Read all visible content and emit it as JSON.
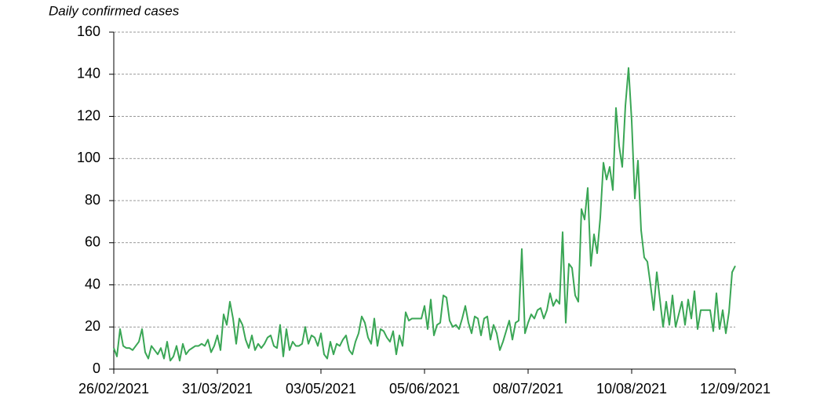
{
  "chart_data": {
    "type": "line",
    "title": "Daily confirmed cases",
    "categories": [
      "26/02/2021",
      null,
      null,
      null,
      null,
      null,
      null,
      null,
      null,
      null,
      null,
      null,
      null,
      null,
      null,
      null,
      null,
      null,
      null,
      null,
      null,
      null,
      null,
      null,
      null,
      null,
      null,
      null,
      null,
      null,
      null,
      null,
      null,
      "31/03/2021",
      null,
      null,
      null,
      null,
      null,
      null,
      null,
      null,
      null,
      null,
      null,
      null,
      null,
      null,
      null,
      null,
      null,
      null,
      null,
      null,
      null,
      null,
      null,
      null,
      null,
      null,
      null,
      null,
      null,
      null,
      null,
      null,
      "03/05/2021",
      null,
      null,
      null,
      null,
      null,
      null,
      null,
      null,
      null,
      null,
      null,
      null,
      null,
      null,
      null,
      null,
      null,
      null,
      null,
      null,
      null,
      null,
      null,
      null,
      null,
      null,
      null,
      null,
      null,
      null,
      null,
      null,
      "05/06/2021",
      null,
      null,
      null,
      null,
      null,
      null,
      null,
      null,
      null,
      null,
      null,
      null,
      null,
      null,
      null,
      null,
      null,
      null,
      null,
      null,
      null,
      null,
      null,
      null,
      null,
      null,
      null,
      null,
      null,
      null,
      null,
      null,
      "08/07/2021",
      null,
      null,
      null,
      null,
      null,
      null,
      null,
      null,
      null,
      null,
      null,
      null,
      null,
      null,
      null,
      null,
      null,
      null,
      null,
      null,
      null,
      null,
      null,
      null,
      null,
      null,
      null,
      null,
      null,
      null,
      null,
      null,
      "10/08/2021",
      null,
      null,
      null,
      null,
      null,
      null,
      null,
      null,
      null,
      null,
      null,
      null,
      null,
      null,
      null,
      null,
      null,
      null,
      null,
      null,
      null,
      null,
      null,
      null,
      null,
      null,
      null,
      null,
      null,
      null,
      null,
      null,
      "12/09/2021"
    ],
    "values": [
      10,
      6,
      19,
      11,
      10,
      10,
      9,
      11,
      13,
      19,
      8,
      5,
      11,
      9,
      7,
      10,
      5,
      13,
      4,
      6,
      11,
      4,
      12,
      7,
      9,
      10,
      11,
      11,
      12,
      11,
      14,
      8,
      11,
      16,
      9,
      26,
      21,
      32,
      24,
      12,
      24,
      21,
      14,
      10,
      16,
      9,
      12,
      10,
      12,
      15,
      16,
      11,
      10,
      21,
      6,
      19,
      9,
      13,
      11,
      11,
      12,
      20,
      12,
      16,
      15,
      11,
      17,
      7,
      5,
      13,
      7,
      12,
      11,
      14,
      16,
      9,
      7,
      13,
      17,
      25,
      22,
      15,
      12,
      24,
      11,
      19,
      18,
      15,
      13,
      18,
      7,
      16,
      11,
      27,
      23,
      24,
      24,
      24,
      24,
      30,
      19,
      33,
      16,
      21,
      22,
      35,
      34,
      23,
      20,
      21,
      19,
      24,
      30,
      22,
      17,
      25,
      24,
      16,
      24,
      25,
      14,
      21,
      17,
      9,
      13,
      18,
      23,
      14,
      22,
      23,
      57,
      17,
      22,
      26,
      24,
      28,
      29,
      24,
      28,
      36,
      30,
      33,
      31,
      65,
      22,
      50,
      48,
      35,
      32,
      76,
      71,
      86,
      49,
      64,
      55,
      72,
      98,
      90,
      96,
      85,
      124,
      106,
      96,
      125,
      143,
      118,
      81,
      99,
      66,
      53,
      51,
      40,
      28,
      46,
      33,
      20,
      32,
      21,
      35,
      20,
      26,
      32,
      21,
      33,
      24,
      37,
      19,
      28,
      28,
      28,
      28,
      18,
      36,
      19,
      28,
      17,
      27,
      46,
      49
    ],
    "color": "#3aa655",
    "ylim": [
      0,
      160
    ],
    "yticks": [
      0,
      20,
      40,
      60,
      80,
      100,
      120,
      140,
      160
    ],
    "grid": true
  }
}
